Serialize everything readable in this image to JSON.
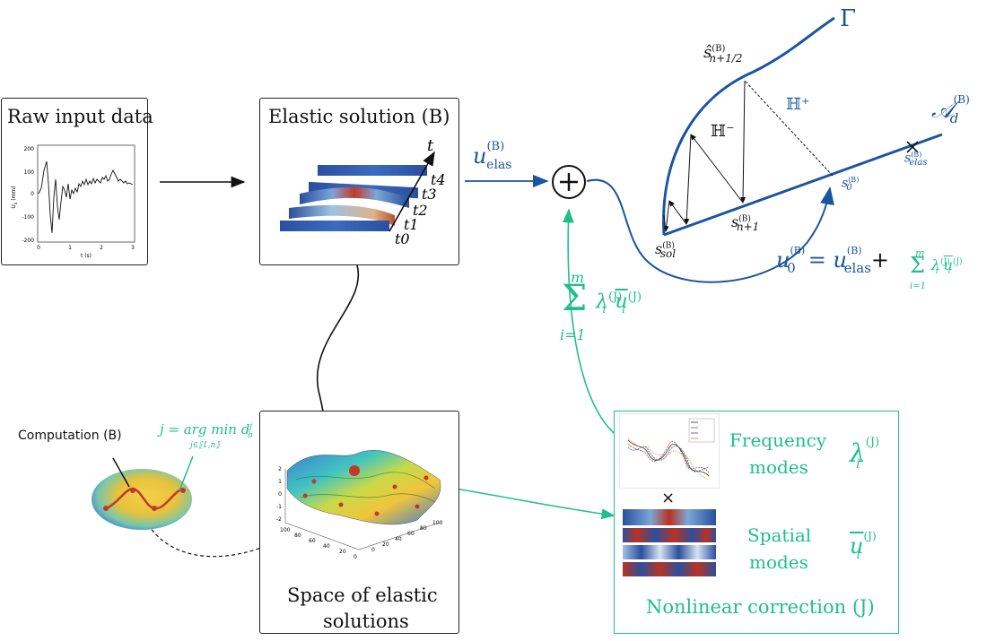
{
  "boxes": {
    "raw": {
      "title": "Raw input data"
    },
    "elastic": {
      "title": "Elastic solution (B)"
    },
    "space": {
      "title_line1": "Space of elastic",
      "title_line2": "solutions"
    },
    "nonlinear": {
      "title": "Nonlinear correction (J)",
      "frequency_line1": "Frequency",
      "frequency_line2": "modes",
      "spatial_line1": "Spatial",
      "spatial_line2": "modes",
      "times": "×"
    }
  },
  "raw_plot": {
    "ylabel": "U",
    "ylabel_sub": "d",
    "ylabel_unit": "(mm)",
    "xlabel": "t (s)",
    "yticks": [
      "200",
      "100",
      "0",
      "-100",
      "-200"
    ],
    "xticks": [
      "0",
      "1",
      "2",
      "3"
    ]
  },
  "elastic_times": [
    "t",
    "t4",
    "t3",
    "t2",
    "t1",
    "t0"
  ],
  "labels": {
    "computation": "Computation (B)",
    "argmin": "j = arg min d",
    "argmin_sup": "j",
    "argmin_sub": "b",
    "argmin_under": "j∈⟦1,n⟧",
    "u_elas": "u",
    "u_elas_sup": "(B)",
    "u_elas_sub": "elas",
    "sum_symbol": "Σ",
    "sum_top": "m",
    "sum_bottom": "i=1",
    "lambda": "λ",
    "lambda_sup": "(J)",
    "lambda_sub": "i",
    "ubar": "u",
    "plus": "+"
  },
  "graph": {
    "gamma": "Γ",
    "A": "𝒜",
    "A_sup": "(B)",
    "A_sub": "d",
    "H_plus": "ℍ⁺",
    "H_minus": "ℍ⁻",
    "s_hat": "ŝ",
    "s_hat_sup": "(B)",
    "s_hat_sub": "n+1/2",
    "s_n1": "s",
    "s_n1_sup": "(B)",
    "s_n1_sub": "n+1",
    "s_sol": "s",
    "s_sol_sup": "(B)",
    "s_sol_sub": "sol",
    "s_0": "s",
    "s_0_sup": "(B)",
    "s_0_sub": "0",
    "s_elas": "s",
    "s_elas_sup": "(B)",
    "s_elas_sub": "elas",
    "u0_eq_u0": "u",
    "u0_eq_u0_sup": "(B)",
    "u0_eq_u0_sub": "0",
    "u0_eq_eq": "=",
    "u0_eq_uel": "u",
    "u0_eq_uel_sup": "(B)",
    "u0_eq_uel_sub": "elas",
    "u0_eq_plus": "+"
  },
  "surface_axes": {
    "zticks": [
      "2",
      "1",
      "0",
      "-1",
      "-2"
    ],
    "xticks": [
      "100",
      "80",
      "60",
      "40",
      "20",
      "0"
    ],
    "yticks": [
      "0",
      "20",
      "40",
      "60",
      "80",
      "100"
    ]
  },
  "colors": {
    "green": "#1fbf8a",
    "blue": "#1a56a0",
    "black": "#111111",
    "red": "#c0392b"
  }
}
